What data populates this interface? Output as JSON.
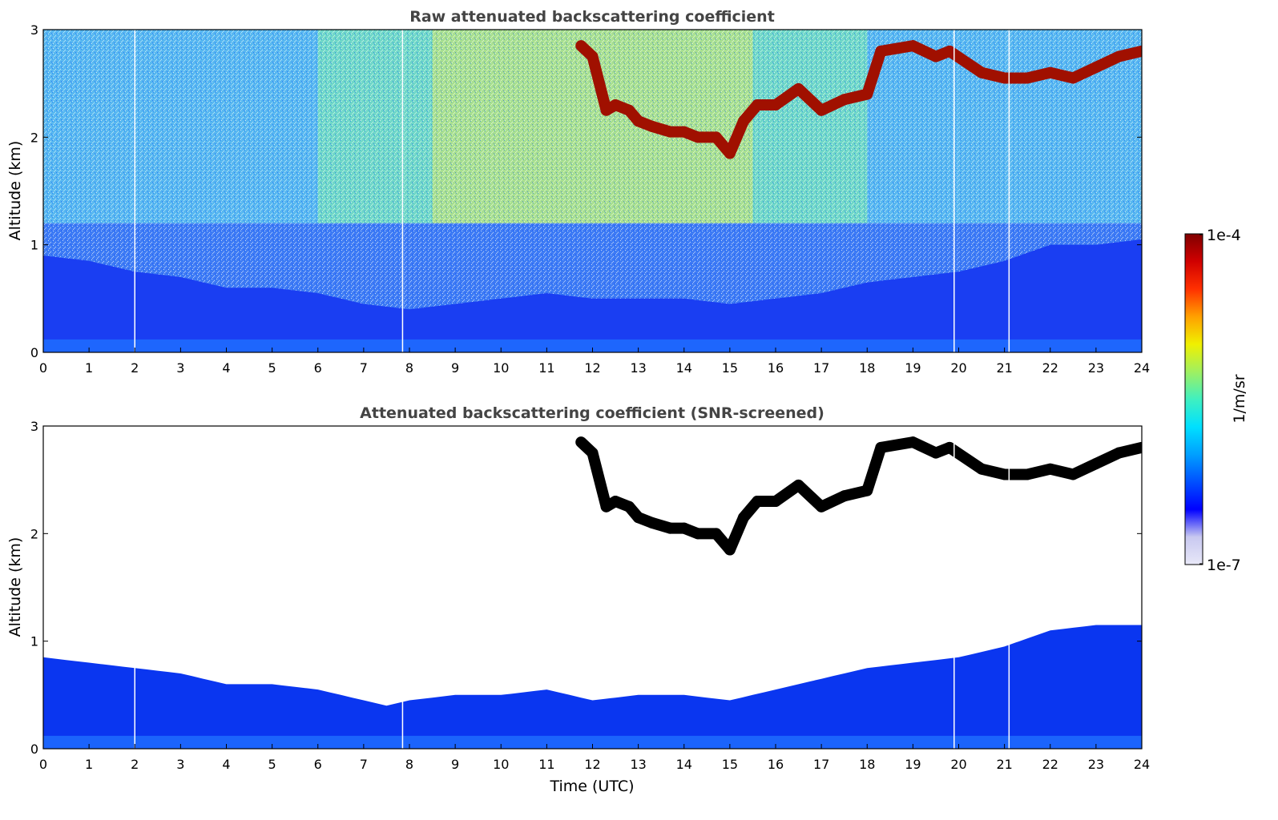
{
  "figure": {
    "colorbar": {
      "label": "1/m/sr",
      "max_label": "1e-4",
      "min_label": "1e-7",
      "scale": "log",
      "range": [
        1e-07,
        0.0001
      ],
      "colormap": [
        "#e8e8f8",
        "#c8c8f0",
        "#0000ff",
        "#0050ff",
        "#00a0ff",
        "#00e0ff",
        "#40f0c0",
        "#a0f060",
        "#f0f000",
        "#ffa000",
        "#ff3000",
        "#d00000",
        "#800000"
      ]
    },
    "xlabel": "Time (UTC)"
  },
  "chart_data": [
    {
      "type": "heatmap",
      "title": "Raw attenuated backscattering coefficient",
      "xlabel": "",
      "ylabel": "Altitude (km)",
      "xlim": [
        0,
        24
      ],
      "ylim": [
        0,
        3
      ],
      "x_ticks": [
        "0",
        "1",
        "2",
        "3",
        "4",
        "5",
        "6",
        "7",
        "8",
        "9",
        "10",
        "11",
        "12",
        "13",
        "14",
        "15",
        "16",
        "17",
        "18",
        "19",
        "20",
        "21",
        "22",
        "23",
        "24"
      ],
      "y_ticks": [
        "0",
        "1",
        "2",
        "3"
      ],
      "grid": false,
      "data_gaps_hours": [
        2.0,
        7.85,
        19.9,
        21.1
      ],
      "cloud_layer": {
        "time": [
          11.75,
          12.0,
          12.3,
          12.5,
          12.8,
          13.0,
          13.3,
          13.7,
          14.0,
          14.3,
          14.7,
          15.0,
          15.3,
          15.6,
          16.0,
          16.5,
          17.0,
          17.5,
          18.0,
          18.3,
          19.0,
          19.5,
          19.8,
          20.5,
          21.0,
          21.5,
          22.0,
          22.5,
          23.0,
          23.5,
          24.0
        ],
        "altitude_km": [
          2.85,
          2.75,
          2.25,
          2.3,
          2.25,
          2.15,
          2.1,
          2.05,
          2.05,
          2.0,
          2.0,
          1.85,
          2.15,
          2.3,
          2.3,
          2.45,
          2.25,
          2.35,
          2.4,
          2.8,
          2.85,
          2.75,
          2.8,
          2.6,
          2.55,
          2.55,
          2.6,
          2.55,
          2.65,
          2.75,
          2.8
        ]
      },
      "boundary_layer_top": {
        "time": [
          0,
          1,
          2,
          3,
          4,
          5,
          6,
          7,
          8,
          9,
          10,
          11,
          12,
          13,
          14,
          15,
          16,
          17,
          18,
          19,
          20,
          21,
          22,
          23,
          24
        ],
        "altitude_km": [
          0.9,
          0.85,
          0.75,
          0.7,
          0.6,
          0.6,
          0.55,
          0.45,
          0.4,
          0.45,
          0.5,
          0.55,
          0.5,
          0.5,
          0.5,
          0.45,
          0.5,
          0.55,
          0.65,
          0.7,
          0.75,
          0.85,
          1.0,
          1.0,
          1.05
        ]
      }
    },
    {
      "type": "heatmap",
      "title": "Attenuated backscattering coefficient (SNR-screened)",
      "xlabel": "Time (UTC)",
      "ylabel": "Altitude (km)",
      "xlim": [
        0,
        24
      ],
      "ylim": [
        0,
        3
      ],
      "x_ticks": [
        "0",
        "1",
        "2",
        "3",
        "4",
        "5",
        "6",
        "7",
        "8",
        "9",
        "10",
        "11",
        "12",
        "13",
        "14",
        "15",
        "16",
        "17",
        "18",
        "19",
        "20",
        "21",
        "22",
        "23",
        "24"
      ],
      "y_ticks": [
        "0",
        "1",
        "2",
        "3"
      ],
      "grid": false,
      "data_gaps_hours": [
        2.0,
        7.85,
        19.9,
        21.1
      ],
      "cloud_layer_color": "#000000",
      "boundary_layer_top": {
        "time": [
          0,
          1,
          2,
          3,
          4,
          5,
          6,
          7,
          7.5,
          8,
          9,
          10,
          11,
          12,
          13,
          14,
          15,
          16,
          17,
          18,
          19,
          20,
          21,
          22,
          23,
          24
        ],
        "altitude_km": [
          0.85,
          0.8,
          0.75,
          0.7,
          0.6,
          0.6,
          0.55,
          0.45,
          0.4,
          0.45,
          0.5,
          0.5,
          0.55,
          0.45,
          0.5,
          0.5,
          0.45,
          0.55,
          0.65,
          0.75,
          0.8,
          0.85,
          0.95,
          1.1,
          1.15,
          1.15
        ]
      }
    }
  ]
}
